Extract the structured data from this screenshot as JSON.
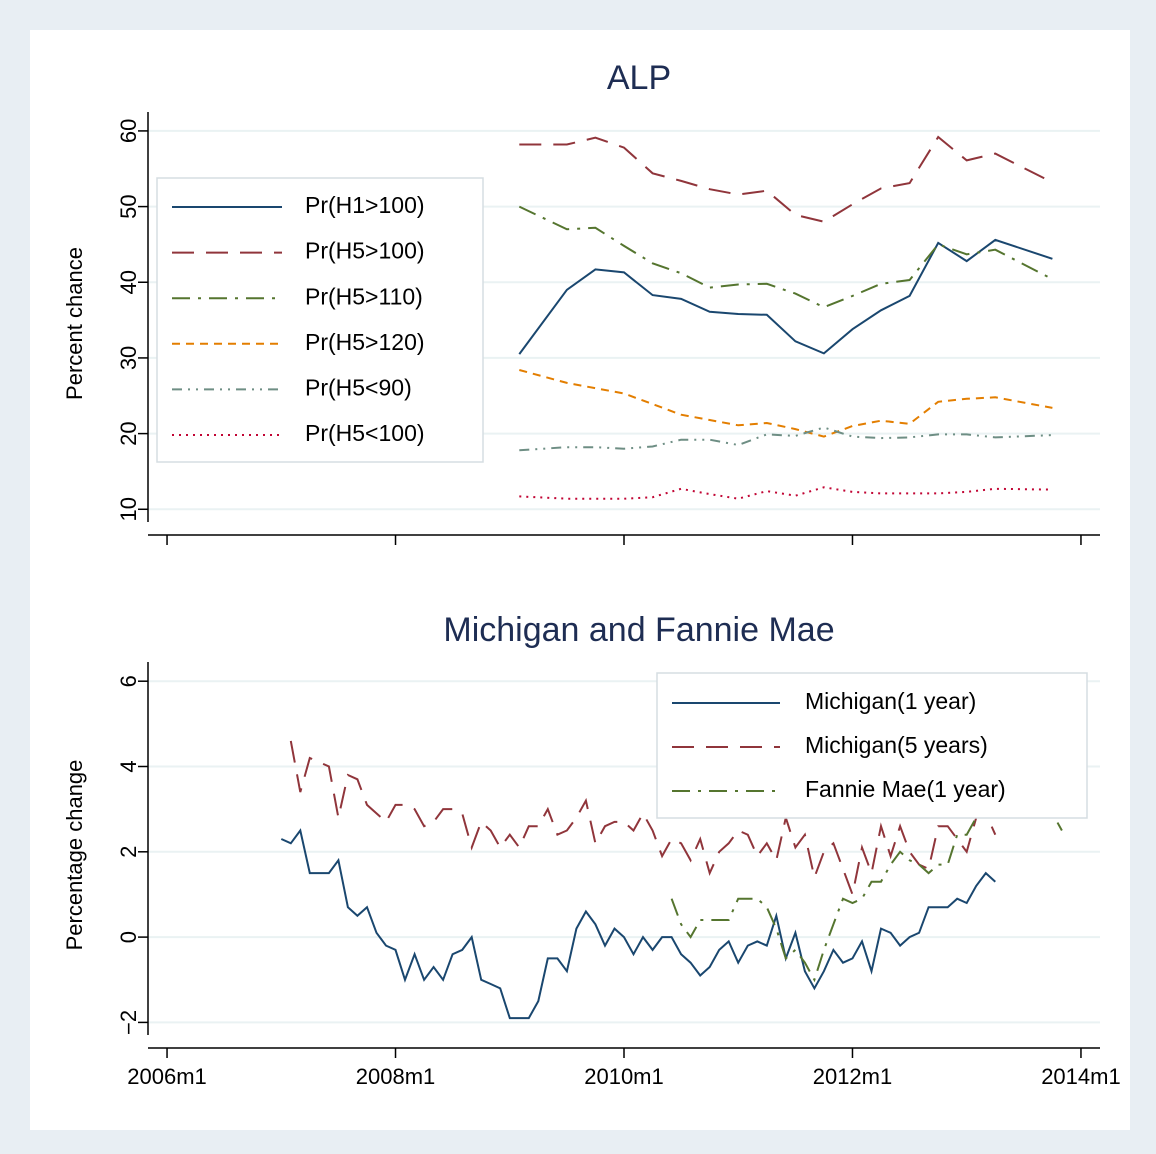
{
  "chart_data": [
    {
      "type": "line",
      "title": "ALP",
      "ylabel": "Percent chance",
      "ylim": [
        6.6,
        62.5
      ],
      "yticks": [
        10,
        20,
        30,
        40,
        50,
        60
      ],
      "grid": true,
      "legend": "upper left",
      "xlim": [
        "2005m11",
        "2014m3"
      ],
      "xticks": [
        "2006m1",
        "2008m1",
        "2010m1",
        "2012m1",
        "2014m1"
      ],
      "x": [
        "2009m2",
        "2009m7",
        "2009m10",
        "2010m1",
        "2010m4",
        "2010m7",
        "2010m10",
        "2011m1",
        "2011m4",
        "2011m7",
        "2011m10",
        "2012m1",
        "2012m4",
        "2012m7",
        "2012m10",
        "2013m1",
        "2013m4",
        "2013m10"
      ],
      "series": [
        {
          "name": "Pr(H1>100)",
          "color": "#1a476f",
          "linestyle": "solid",
          "values": [
            30.5,
            39.0,
            41.7,
            41.3,
            38.3,
            37.8,
            36.1,
            35.8,
            35.7,
            32.2,
            30.6,
            33.8,
            36.3,
            38.2,
            45.2,
            42.8,
            45.6,
            43.1
          ]
        },
        {
          "name": "Pr(H5>100)",
          "color": "#90353b",
          "linestyle": "dash",
          "values": [
            58.2,
            58.2,
            59.1,
            57.8,
            54.4,
            53.4,
            52.3,
            51.6,
            52.1,
            48.9,
            48.0,
            50.3,
            52.4,
            53.1,
            59.2,
            56.1,
            57.0,
            53.2
          ]
        },
        {
          "name": "Pr(H5>110)",
          "color": "#55752f",
          "linestyle": "dashdot",
          "values": [
            50.0,
            47.0,
            47.2,
            44.8,
            42.5,
            41.2,
            39.3,
            39.7,
            39.8,
            38.5,
            36.7,
            38.2,
            39.8,
            40.3,
            45.0,
            43.7,
            44.3,
            40.4
          ]
        },
        {
          "name": "Pr(H5>120)",
          "color": "#e37e00",
          "linestyle": "shortdash",
          "values": [
            28.4,
            26.7,
            26.0,
            25.3,
            23.9,
            22.5,
            21.8,
            21.1,
            21.4,
            20.6,
            19.6,
            21.0,
            21.7,
            21.3,
            24.2,
            24.6,
            24.8,
            23.4
          ]
        },
        {
          "name": "Pr(H5<90)",
          "color": "#6e8e84",
          "linestyle": "dashdotdot",
          "values": [
            17.8,
            18.2,
            18.2,
            18.0,
            18.3,
            19.2,
            19.2,
            18.5,
            19.9,
            19.7,
            20.8,
            19.6,
            19.4,
            19.5,
            19.9,
            19.9,
            19.5,
            19.8
          ]
        },
        {
          "name": "Pr(H5<100)",
          "color": "#c10534",
          "linestyle": "dot",
          "values": [
            11.7,
            11.4,
            11.4,
            11.4,
            11.6,
            12.7,
            12.0,
            11.4,
            12.4,
            11.8,
            12.9,
            12.3,
            12.1,
            12.1,
            12.1,
            12.3,
            12.7,
            12.6
          ]
        }
      ]
    },
    {
      "type": "line",
      "title": "Michigan and Fannie Mae",
      "ylabel": "Percentage change",
      "ylim": [
        -2.6,
        6.45
      ],
      "yticks": [
        {
          "value": -2,
          "label": "−2"
        },
        0,
        2,
        4,
        6
      ],
      "grid": true,
      "legend": "upper right",
      "xlim": [
        "2005m11",
        "2014m3"
      ],
      "xticks": [
        "2006m1",
        "2008m1",
        "2010m1",
        "2012m1",
        "2014m1"
      ],
      "series": [
        {
          "name": "Michigan(1 year)",
          "color": "#1a476f",
          "linestyle": "solid",
          "start": "2007m1",
          "values": [
            2.3,
            2.2,
            2.5,
            1.5,
            1.5,
            1.5,
            1.8,
            0.7,
            0.5,
            0.7,
            0.1,
            -0.2,
            -0.3,
            -1.0,
            -0.4,
            -1.0,
            -0.7,
            -1.0,
            -0.4,
            -0.3,
            0.0,
            -1.0,
            -1.1,
            -1.2,
            -1.9,
            -1.9,
            -1.9,
            -1.5,
            -0.5,
            -0.5,
            -0.8,
            0.2,
            0.6,
            0.3,
            -0.2,
            0.2,
            0.0,
            -0.4,
            0.0,
            -0.3,
            0.0,
            0.0,
            -0.4,
            -0.6,
            -0.9,
            -0.7,
            -0.3,
            -0.1,
            -0.6,
            -0.2,
            -0.1,
            -0.2,
            0.5,
            -0.5,
            0.1,
            -0.8,
            -1.2,
            -0.8,
            -0.3,
            -0.6,
            -0.5,
            -0.1,
            -0.8,
            0.2,
            0.1,
            -0.2,
            0.0,
            0.1,
            0.7,
            0.7,
            0.7,
            0.9,
            0.8,
            1.2,
            1.5,
            1.3
          ]
        },
        {
          "name": "Michigan(5 years)",
          "color": "#90353b",
          "linestyle": "dash",
          "start": "2007m2",
          "values": [
            4.6,
            3.4,
            4.2,
            4.1,
            4.0,
            2.8,
            3.8,
            3.7,
            3.1,
            2.9,
            2.7,
            3.1,
            3.1,
            3.0,
            2.6,
            2.7,
            3.0,
            3.0,
            2.9,
            2.1,
            2.7,
            2.5,
            2.1,
            2.4,
            2.1,
            2.6,
            2.6,
            3.0,
            2.4,
            2.5,
            2.8,
            3.2,
            2.2,
            2.6,
            2.7,
            2.7,
            2.5,
            2.9,
            2.5,
            1.9,
            2.3,
            2.2,
            1.8,
            2.3,
            1.5,
            2.0,
            2.2,
            2.5,
            2.4,
            1.9,
            2.2,
            1.8,
            2.8,
            2.1,
            2.4,
            1.4,
            2.0,
            2.2,
            1.6,
            1.0,
            2.1,
            1.5,
            2.6,
            1.9,
            2.6,
            2.0,
            1.7,
            1.6,
            2.6,
            2.6,
            2.3,
            2.0,
            2.8,
            2.9,
            2.4
          ]
        },
        {
          "name": "Fannie Mae(1 year)",
          "color": "#55752f",
          "linestyle": "dashdot",
          "start": "2010m6",
          "values": [
            0.9,
            0.3,
            0.0,
            0.4,
            0.4,
            0.4,
            0.4,
            0.9,
            0.9,
            0.9,
            0.7,
            0.2,
            -0.5,
            -0.3,
            -0.6,
            -1.0,
            -0.3,
            0.3,
            0.9,
            0.8,
            0.9,
            1.3,
            1.3,
            1.7,
            2.0,
            1.8,
            1.7,
            1.5,
            1.7,
            1.7,
            2.4,
            2.4,
            2.8,
            2.9,
            3.0,
            3.0,
            3.0,
            3.0,
            3.0,
            3.0,
            2.9,
            2.5
          ]
        }
      ]
    }
  ]
}
